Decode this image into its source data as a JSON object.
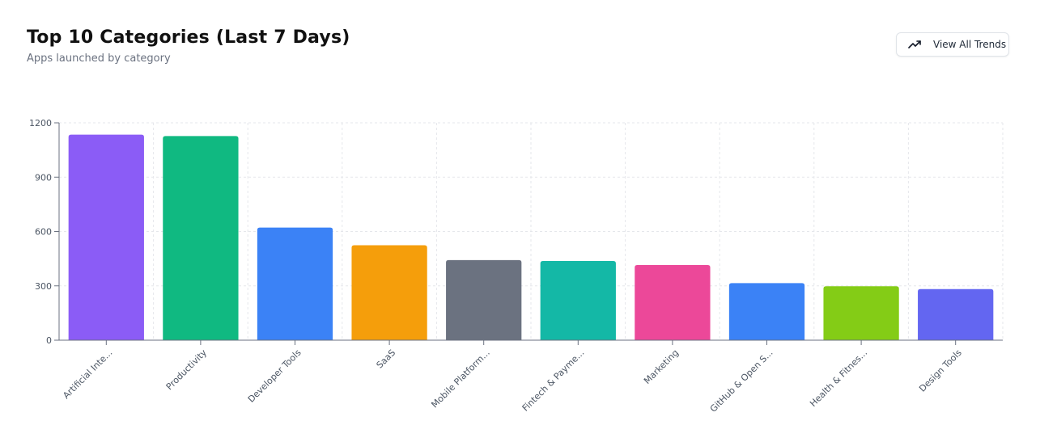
{
  "header": {
    "title": "Top 10 Categories (Last 7 Days)",
    "subtitle": "Apps launched by category"
  },
  "actions": {
    "view_all_label": "View All Trends",
    "view_all_icon": "trending-up-icon"
  },
  "chart_data": {
    "type": "bar",
    "categories": [
      "Artificial Inte...",
      "Productivity",
      "Developer Tools",
      "SaaS",
      "Mobile Platform...",
      "Fintech & Payme...",
      "Marketing",
      "GitHub & Open S...",
      "Health & Fitnes...",
      "Design Tools"
    ],
    "values": [
      1135,
      1127,
      622,
      524,
      442,
      437,
      415,
      315,
      298,
      282
    ],
    "colors": [
      "#8b5cf6",
      "#10b981",
      "#3b82f6",
      "#f59e0b",
      "#6b7280",
      "#14b8a6",
      "#ec4899",
      "#3b82f6",
      "#84cc16",
      "#6366f1"
    ],
    "yticks": [
      "0",
      "300",
      "600",
      "900",
      "1200"
    ],
    "ylim": [
      0,
      1200
    ],
    "grid": true,
    "xlabel": "",
    "ylabel": ""
  }
}
